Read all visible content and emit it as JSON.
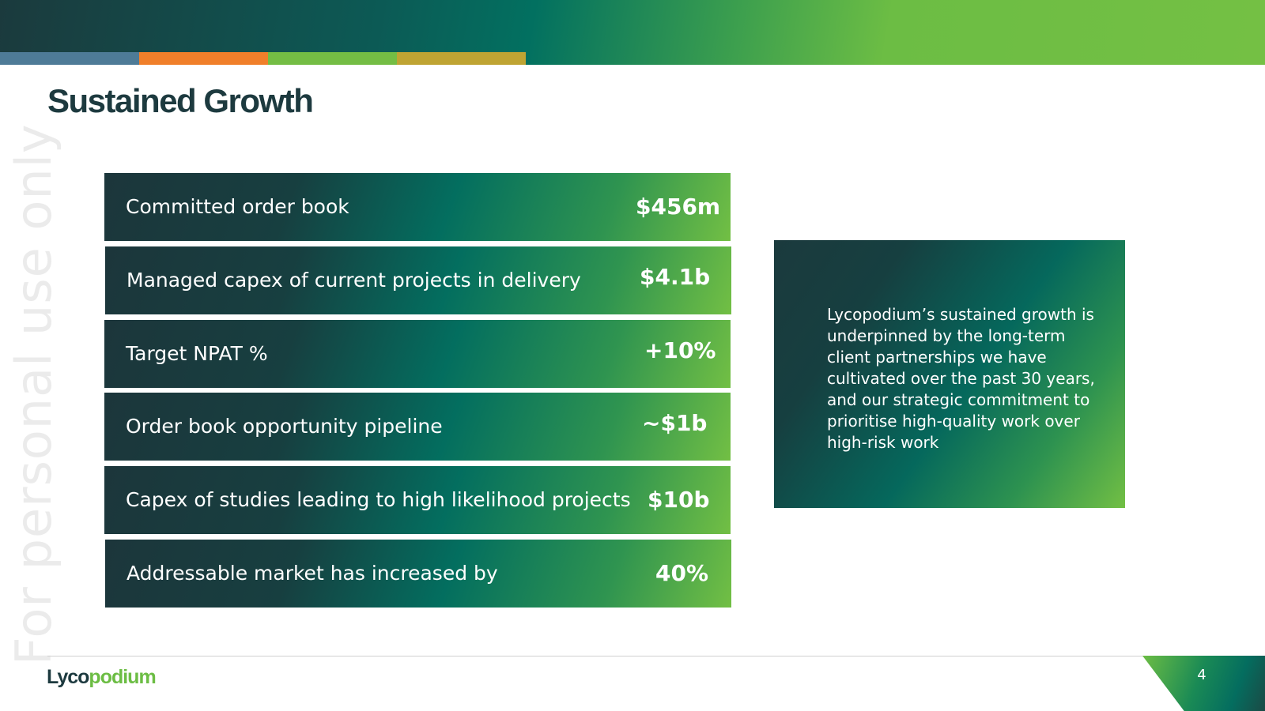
{
  "slide": {
    "title": "Sustained Growth",
    "watermark": "For personal use only",
    "page_number": "4"
  },
  "metrics": [
    {
      "label": "Committed order book",
      "value": "$456m"
    },
    {
      "label": "Managed capex of current projects in delivery",
      "value": "$4.1b"
    },
    {
      "label": "Target NPAT %",
      "value": "+10%"
    },
    {
      "label": "Order book opportunity pipeline",
      "value": "~$1b"
    },
    {
      "label": "Capex of studies leading to high likelihood projects",
      "value": "$10b"
    },
    {
      "label": "Addressable market has increased by",
      "value": "40%"
    }
  ],
  "info_box": {
    "text": "Lycopodium’s sustained growth is underpinned by the long-term client partnerships we have cultivated over the past 30 years, and our strategic commitment to prioritise high-quality work over high-risk work"
  },
  "footer": {
    "logo_part1": "Lyco",
    "logo_part2": "podium"
  },
  "colors": {
    "dark_teal": "#1d3a3f",
    "teal": "#036e5f",
    "green": "#74bd44",
    "strip_blue": "#4e7b97",
    "strip_orange": "#f07f2a",
    "strip_green": "#74bd44",
    "strip_gold": "#bfa433"
  }
}
